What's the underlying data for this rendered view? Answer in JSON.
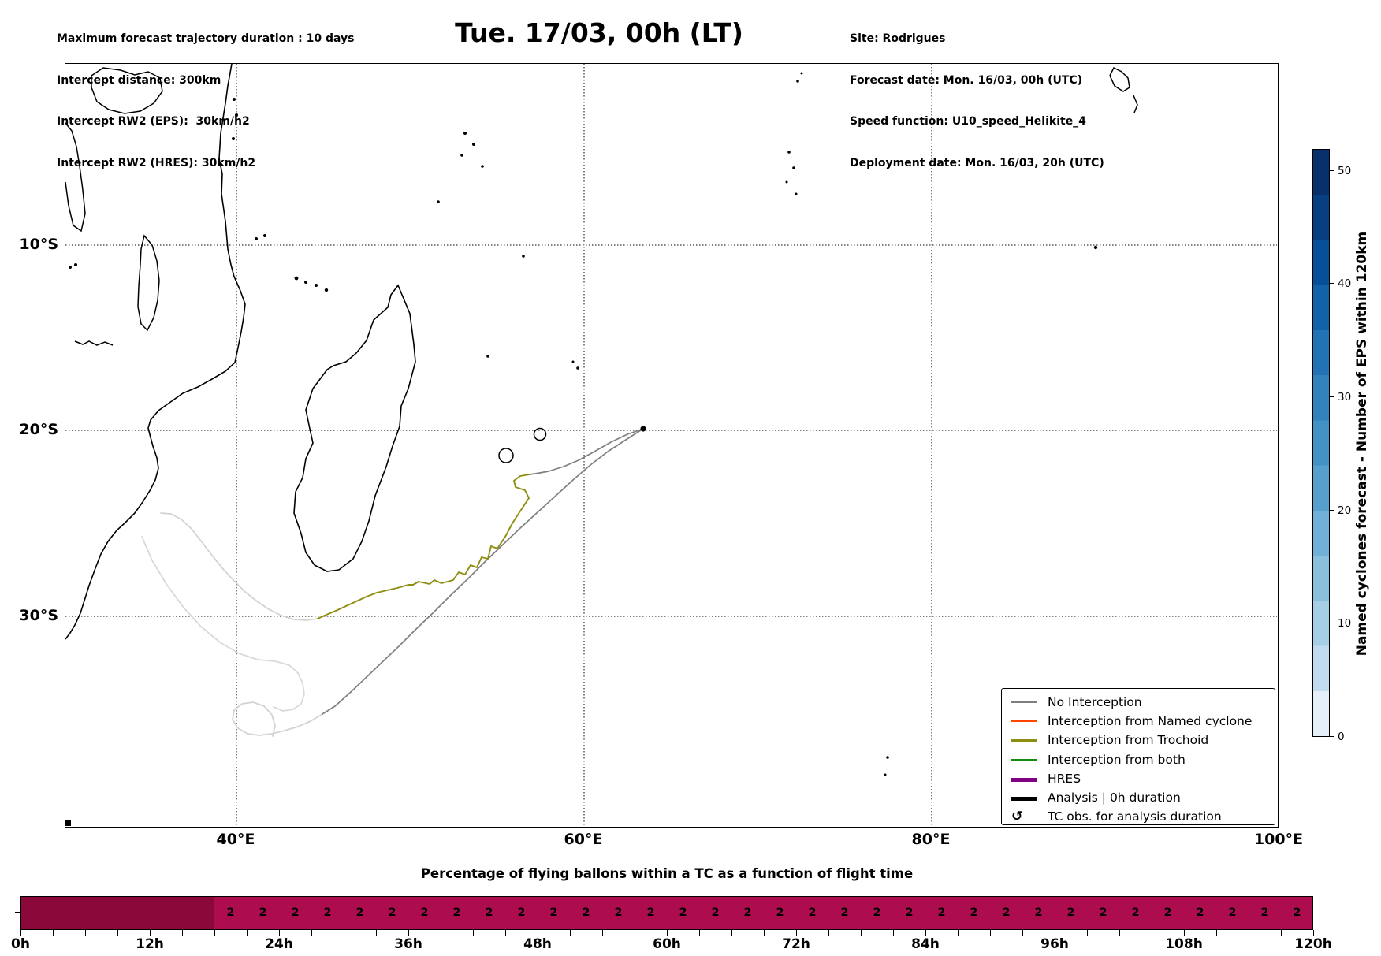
{
  "header": {
    "left_lines": [
      "Maximum forecast trajectory duration : 10 days",
      "Intercept distance: 300km",
      "Intercept RW2 (EPS):  30km/h2",
      "Intercept RW2 (HRES): 30km/h2"
    ],
    "title": "Tue. 17/03, 00h (LT)",
    "right_lines": [
      "Site: Rodrigues",
      "Forecast date: Mon. 16/03, 00h (UTC)",
      "Speed function: U10_speed_Helikite_4",
      "Deployment date: Mon. 16/03, 20h (UTC)"
    ]
  },
  "map": {
    "x_tick_labels": [
      "40°E",
      "60°E",
      "80°E",
      "100°E"
    ],
    "y_tick_labels": [
      "10°S",
      "20°S",
      "30°S"
    ],
    "site_point": {
      "site": "Rodrigues",
      "lon_e": 63.4,
      "lat_s": 19.7
    },
    "colors": {
      "coastline": "#000000",
      "no_interception": "#7f7f7f",
      "trochoid": "#8e8e12",
      "faded_trajectory": "#d3d3d3"
    }
  },
  "legend": {
    "items": [
      {
        "label": "No Interception",
        "color": "#7f7f7f",
        "thick": false
      },
      {
        "label": "Interception from Named cyclone",
        "color": "#ff4500",
        "thick": false
      },
      {
        "label": "Interception from Trochoid",
        "color": "#8e8e12",
        "thick": false
      },
      {
        "label": "Interception from both",
        "color": "#0f8f0f",
        "thick": false
      },
      {
        "label": "HRES",
        "color": "#800080",
        "thick": true
      },
      {
        "label": "Analysis | 0h duration",
        "color": "#000000",
        "thick": true
      },
      {
        "label": "TC obs. for analysis duration",
        "icon": "↺"
      }
    ]
  },
  "colorbar": {
    "label": "Named cyclones forecast - Number of EPS within 120km",
    "ticks": [
      "0",
      "10",
      "20",
      "30",
      "40",
      "50"
    ],
    "segment_colors": [
      "#08306b",
      "#083e82",
      "#084f99",
      "#1262a9",
      "#2272b6",
      "#3282be",
      "#4292c6",
      "#57a0ce",
      "#71b1d7",
      "#8bc0dd",
      "#a6cee4",
      "#c2daee",
      "#e4eff9"
    ]
  },
  "bottom_chart": {
    "title": "Percentage of flying ballons within a TC as a function of flight time",
    "x_tick_labels": [
      "0h",
      "12h",
      "24h",
      "36h",
      "48h",
      "60h",
      "72h",
      "84h",
      "96h",
      "108h",
      "120h"
    ],
    "bar_color_dark": "#8b083b",
    "bar_color_light": "#ad0d4f"
  },
  "chart_data": [
    {
      "type": "bar",
      "title": "Percentage of flying ballons within a TC as a function of flight time",
      "xlabel": "flight time",
      "x_tick_labels": [
        "0h",
        "12h",
        "24h",
        "36h",
        "48h",
        "60h",
        "72h",
        "84h",
        "96h",
        "108h",
        "120h"
      ],
      "bin_start_h": 0,
      "bin_width_h": 3,
      "x_range_h": [
        0,
        120
      ],
      "categories_h": [
        0,
        3,
        6,
        9,
        12,
        15,
        18,
        21,
        24,
        27,
        30,
        33,
        36,
        39,
        42,
        45,
        48,
        51,
        54,
        57,
        60,
        63,
        66,
        69,
        72,
        75,
        78,
        81,
        84,
        87,
        90,
        93,
        96,
        99,
        102,
        105,
        108,
        111,
        114,
        117
      ],
      "values": [
        null,
        null,
        null,
        null,
        null,
        null,
        2,
        2,
        2,
        2,
        2,
        2,
        2,
        2,
        2,
        2,
        2,
        2,
        2,
        2,
        2,
        2,
        2,
        2,
        2,
        2,
        2,
        2,
        2,
        2,
        2,
        2,
        2,
        2,
        2,
        2,
        2,
        2,
        2,
        2
      ],
      "notes": "bins 0-18h drawn darker with no value label; bins 18h-120h lighter, each labeled 2"
    },
    {
      "type": "map",
      "title": "Balloon forecast trajectories over SW Indian Ocean",
      "lon_gridlines_e": [
        40,
        60,
        80,
        100
      ],
      "lat_gridlines_s": [
        10,
        20,
        30
      ],
      "site": "Rodrigues",
      "site_lon_e": 63.4,
      "site_lat_s": 19.7,
      "trajectories": [
        {
          "class": "No Interception",
          "color": "#7f7f7f",
          "shape": "from Rodrigues SW toward 42E/33S, fading with loop at end"
        },
        {
          "class": "Interception from Trochoid",
          "color": "#8e8e12",
          "shape": "from Rodrigues WSW, wiggly olive segment 57E/22S to 45E/28S, fading NW toward Mozambique coast"
        }
      ]
    }
  ]
}
